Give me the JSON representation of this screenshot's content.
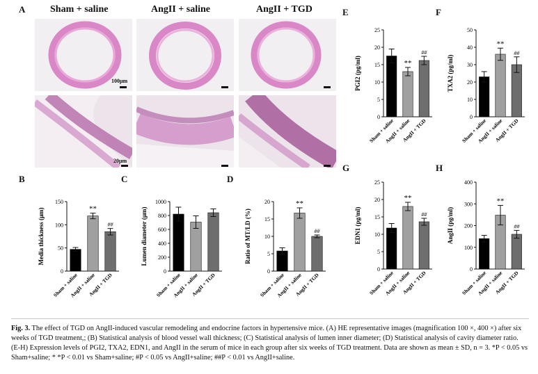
{
  "panel_A": {
    "letter": "A",
    "column_headers": [
      "Sham + saline",
      "AngII + saline",
      "AngII + TGD"
    ],
    "scale_top": "100μm",
    "scale_bottom": "20μm"
  },
  "letters": {
    "B": "B",
    "C": "C",
    "D": "D",
    "E": "E",
    "F": "F",
    "G": "G",
    "H": "H"
  },
  "chart_data": [
    {
      "panel": "B",
      "type": "bar",
      "ylabel": "Media thickness (μm)",
      "categories": [
        "Sham + saline",
        "AngII + saline",
        "AngII + TGD"
      ],
      "values": [
        47,
        119,
        85
      ],
      "errors": [
        4,
        6,
        7
      ],
      "ylim": [
        0,
        150
      ],
      "ticks": [
        0,
        50,
        100,
        150
      ],
      "annotations": [
        "",
        "**",
        "##"
      ],
      "bar_colors": [
        "#000000",
        "#a0a0a0",
        "#6e6e6e"
      ]
    },
    {
      "panel": "C",
      "type": "bar",
      "ylabel": "Lumen diameter (μm)",
      "categories": [
        "Sham + saline",
        "AngII + saline",
        "AngII + TGD"
      ],
      "values": [
        820,
        705,
        840
      ],
      "errors": [
        100,
        90,
        55
      ],
      "ylim": [
        0,
        1000
      ],
      "ticks": [
        0,
        200,
        400,
        600,
        800,
        1000
      ],
      "annotations": [
        "",
        "",
        ""
      ],
      "bar_colors": [
        "#000000",
        "#a0a0a0",
        "#6e6e6e"
      ]
    },
    {
      "panel": "D",
      "type": "bar",
      "ylabel": "Ratio of MT/LD (%)",
      "categories": [
        "Sham + saline",
        "AngII + saline",
        "AngII + TGD"
      ],
      "values": [
        5.8,
        16.7,
        10
      ],
      "errors": [
        0.9,
        1.5,
        0.4
      ],
      "ylim": [
        0,
        20
      ],
      "ticks": [
        0,
        5,
        10,
        15,
        20
      ],
      "annotations": [
        "",
        "**",
        "##"
      ],
      "bar_colors": [
        "#000000",
        "#a0a0a0",
        "#6e6e6e"
      ]
    },
    {
      "panel": "E",
      "type": "bar",
      "ylabel": "PGI2 (pg/ml)",
      "categories": [
        "Sham + saline",
        "AngII + saline",
        "AngII + TGD"
      ],
      "values": [
        17.5,
        13,
        16.2
      ],
      "errors": [
        2,
        1.2,
        1.2
      ],
      "ylim": [
        0,
        25
      ],
      "ticks": [
        0,
        5,
        10,
        15,
        20,
        25
      ],
      "annotations": [
        "",
        "**",
        "##"
      ],
      "bar_colors": [
        "#000000",
        "#a0a0a0",
        "#6e6e6e"
      ]
    },
    {
      "panel": "F",
      "type": "bar",
      "ylabel": "TXA2 (pg/ml)",
      "categories": [
        "Sham + saline",
        "AngII + saline",
        "AngII + TGD"
      ],
      "values": [
        23,
        36,
        30
      ],
      "errors": [
        3,
        3.5,
        4.5
      ],
      "ylim": [
        0,
        50
      ],
      "ticks": [
        0,
        10,
        20,
        30,
        40,
        50
      ],
      "annotations": [
        "",
        "**",
        "##"
      ],
      "bar_colors": [
        "#000000",
        "#a0a0a0",
        "#6e6e6e"
      ]
    },
    {
      "panel": "G",
      "type": "bar",
      "ylabel": "EDN1 (pg/ml)",
      "categories": [
        "Sham + saline",
        "AngII + saline",
        "AngII + TGD"
      ],
      "values": [
        11.8,
        18,
        13.6
      ],
      "errors": [
        1.3,
        1.2,
        1
      ],
      "ylim": [
        0,
        25
      ],
      "ticks": [
        0,
        5,
        10,
        15,
        20,
        25
      ],
      "annotations": [
        "",
        "**",
        "##"
      ],
      "bar_colors": [
        "#000000",
        "#a0a0a0",
        "#6e6e6e"
      ]
    },
    {
      "panel": "H",
      "type": "bar",
      "ylabel": "AngII (pg/ml)",
      "categories": [
        "Sham + saline",
        "AngII + saline",
        "AngII + TGD"
      ],
      "values": [
        140,
        248,
        160
      ],
      "errors": [
        15,
        45,
        18
      ],
      "ylim": [
        0,
        400
      ],
      "ticks": [
        0,
        100,
        200,
        300,
        400
      ],
      "annotations": [
        "",
        "**",
        "##"
      ],
      "bar_colors": [
        "#000000",
        "#a0a0a0",
        "#6e6e6e"
      ]
    }
  ],
  "caption": {
    "label": "Fig. 3.",
    "text": " The effect of TGD on AngII-induced vascular remodeling and endocrine factors in hypertensive mice. (A) HE representative images (magnification 100 ×, 400 ×) after six weeks of TGD treatment,; (B) Statistical analysis of blood vessel wall thickness; (C) Statistical analysis of lumen inner diameter; (D) Statistical analysis of cavity diameter ratio. (E-H) Expression levels of PGI2, TXA2, EDN1, and AngII in the serum of mice in each group after six weeks of TGD treatment. Data are shown as mean ± SD, n = 3. *P < 0.05 vs Sham+saline; * *P < 0.01 vs Sham+saline; #P < 0.05 vs AngII+saline; ##P < 0.01 vs AngII+saline."
  }
}
